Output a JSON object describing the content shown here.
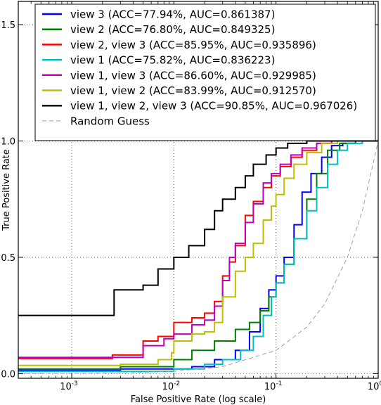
{
  "chart_data": {
    "type": "line",
    "xlabel": "False Positive Rate (log scale)",
    "ylabel": "True Positive Rate",
    "xscale": "log",
    "xlim": [
      0.0003,
      1.0
    ],
    "ylim": [
      -0.02,
      1.6
    ],
    "x_ticks": [
      {
        "value": 0.001,
        "base": "10",
        "exp": "-3"
      },
      {
        "value": 0.01,
        "base": "10",
        "exp": "-2"
      },
      {
        "value": 0.1,
        "base": "10",
        "exp": "-1"
      },
      {
        "value": 1.0,
        "base": "10",
        "exp": "0"
      }
    ],
    "y_ticks": [
      {
        "value": 0.0,
        "label": "0.0"
      },
      {
        "value": 0.5,
        "label": "0.5"
      },
      {
        "value": 1.0,
        "label": "1.0"
      },
      {
        "value": 1.5,
        "label": "1.5"
      }
    ],
    "grid": true,
    "legend_position": "top-left",
    "series": [
      {
        "name": "view 3 (ACC=77.94%, AUC=0.861387)",
        "color": "#0000ff",
        "style": "solid",
        "x": [
          0.0003,
          0.003,
          0.008,
          0.015,
          0.025,
          0.04,
          0.055,
          0.07,
          0.085,
          0.1,
          0.12,
          0.15,
          0.18,
          0.22,
          0.28,
          0.35,
          0.45,
          0.6,
          1.0
        ],
        "y": [
          0.015,
          0.02,
          0.02,
          0.03,
          0.06,
          0.1,
          0.18,
          0.28,
          0.36,
          0.42,
          0.5,
          0.64,
          0.78,
          0.86,
          0.93,
          0.98,
          0.99,
          1.0,
          1.0
        ]
      },
      {
        "name": "view 2 (ACC=76.80%, AUC=0.849325)",
        "color": "#008000",
        "style": "solid",
        "x": [
          0.0003,
          0.003,
          0.006,
          0.01,
          0.015,
          0.025,
          0.04,
          0.055,
          0.07,
          0.085,
          0.1,
          0.12,
          0.15,
          0.2,
          0.25,
          0.32,
          0.42,
          0.6,
          1.0
        ],
        "y": [
          0.02,
          0.03,
          0.03,
          0.06,
          0.1,
          0.14,
          0.19,
          0.22,
          0.27,
          0.33,
          0.39,
          0.47,
          0.58,
          0.75,
          0.86,
          0.96,
          0.99,
          1.0,
          1.0
        ]
      },
      {
        "name": "view 2, view 3 (ACC=85.95%, AUC=0.935896)",
        "color": "#ff0000",
        "style": "solid",
        "x": [
          0.0003,
          0.0025,
          0.005,
          0.007,
          0.01,
          0.015,
          0.02,
          0.025,
          0.03,
          0.035,
          0.04,
          0.05,
          0.06,
          0.075,
          0.09,
          0.11,
          0.14,
          0.18,
          0.25,
          0.35,
          1.0
        ],
        "y": [
          0.065,
          0.08,
          0.14,
          0.16,
          0.22,
          0.24,
          0.26,
          0.31,
          0.42,
          0.48,
          0.55,
          0.68,
          0.74,
          0.8,
          0.85,
          0.89,
          0.93,
          0.96,
          0.99,
          1.0,
          1.0
        ]
      },
      {
        "name": "view 1 (ACC=75.82%, AUC=0.836223)",
        "color": "#00bfbf",
        "style": "solid",
        "x": [
          0.0003,
          0.004,
          0.01,
          0.02,
          0.03,
          0.045,
          0.06,
          0.075,
          0.09,
          0.1,
          0.12,
          0.15,
          0.2,
          0.25,
          0.32,
          0.4,
          0.5,
          0.7,
          1.0
        ],
        "y": [
          0.01,
          0.01,
          0.02,
          0.04,
          0.06,
          0.1,
          0.16,
          0.25,
          0.33,
          0.39,
          0.47,
          0.58,
          0.7,
          0.8,
          0.9,
          0.96,
          0.99,
          1.0,
          1.0
        ]
      },
      {
        "name": "view 1, view 3 (ACC=86.60%, AUC=0.929985)",
        "color": "#bf00bf",
        "style": "solid",
        "x": [
          0.0003,
          0.003,
          0.005,
          0.008,
          0.01,
          0.015,
          0.02,
          0.025,
          0.03,
          0.035,
          0.04,
          0.05,
          0.06,
          0.075,
          0.09,
          0.11,
          0.14,
          0.18,
          0.25,
          0.35,
          1.0
        ],
        "y": [
          0.07,
          0.07,
          0.12,
          0.15,
          0.17,
          0.21,
          0.23,
          0.29,
          0.4,
          0.5,
          0.56,
          0.65,
          0.73,
          0.82,
          0.86,
          0.9,
          0.94,
          0.97,
          0.99,
          1.0,
          1.0
        ]
      },
      {
        "name": "view 1, view 2 (ACC=83.99%, AUC=0.912570)",
        "color": "#bfbf00",
        "style": "solid",
        "x": [
          0.0003,
          0.003,
          0.007,
          0.0095,
          0.01,
          0.015,
          0.02,
          0.025,
          0.03,
          0.04,
          0.05,
          0.06,
          0.075,
          0.09,
          0.1,
          0.12,
          0.15,
          0.2,
          0.28,
          0.4,
          1.0
        ],
        "y": [
          0.035,
          0.04,
          0.06,
          0.09,
          0.14,
          0.17,
          0.18,
          0.22,
          0.33,
          0.44,
          0.5,
          0.56,
          0.66,
          0.72,
          0.77,
          0.84,
          0.9,
          0.95,
          0.99,
          1.0,
          1.0
        ]
      },
      {
        "name": "view 1, view 2, view 3 (ACC=90.85%, AUC=0.967026)",
        "color": "#000000",
        "style": "solid",
        "x": [
          0.0003,
          0.0025,
          0.0026,
          0.005,
          0.007,
          0.01,
          0.014,
          0.02,
          0.025,
          0.03,
          0.04,
          0.05,
          0.06,
          0.08,
          0.1,
          0.13,
          0.2,
          0.3,
          1.0
        ],
        "y": [
          0.25,
          0.25,
          0.36,
          0.38,
          0.45,
          0.5,
          0.55,
          0.62,
          0.7,
          0.75,
          0.8,
          0.85,
          0.9,
          0.94,
          0.97,
          0.99,
          1.0,
          1.0,
          1.0
        ]
      },
      {
        "name": "Random Guess",
        "color": "#a0a0a0",
        "style": "dashed",
        "x": [
          0.0003,
          0.001,
          0.003,
          0.01,
          0.03,
          0.1,
          0.2,
          0.3,
          0.5,
          0.7,
          1.0
        ],
        "y": [
          0.0003,
          0.001,
          0.003,
          0.01,
          0.03,
          0.1,
          0.2,
          0.3,
          0.5,
          0.7,
          1.0
        ]
      }
    ]
  }
}
